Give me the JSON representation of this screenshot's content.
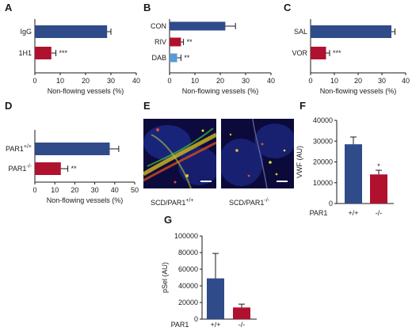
{
  "panels": {
    "A": "A",
    "B": "B",
    "C": "C",
    "D": "D",
    "E": "E",
    "F": "F",
    "G": "G"
  },
  "colors": {
    "blue": "#2f4b8a",
    "red": "#b0112e",
    "lightblue": "#5b9bd5"
  },
  "chart_data": [
    {
      "panel": "A",
      "type": "bar",
      "orientation": "horizontal",
      "categories": [
        "IgG",
        "1H1"
      ],
      "values": [
        28.5,
        6.5
      ],
      "errors": [
        1.5,
        1.8
      ],
      "significance": [
        "",
        "***"
      ],
      "colors": [
        "#2f4b8a",
        "#b0112e"
      ],
      "xlabel": "Non-flowing vessels (%)",
      "xlim": [
        0,
        40
      ],
      "xticks": [
        "0",
        "10",
        "20",
        "30",
        "40"
      ]
    },
    {
      "panel": "B",
      "type": "bar",
      "orientation": "horizontal",
      "categories": [
        "CON",
        "RIV",
        "DAB"
      ],
      "values": [
        22,
        4.5,
        3
      ],
      "errors": [
        4,
        1,
        1.5
      ],
      "significance": [
        "",
        "**",
        "**"
      ],
      "colors": [
        "#2f4b8a",
        "#b0112e",
        "#5b9bd5"
      ],
      "xlabel": "Non-flowing vessels (%)",
      "xlim": [
        0,
        40
      ],
      "xticks": [
        "0",
        "10",
        "20",
        "30",
        "40"
      ]
    },
    {
      "panel": "C",
      "type": "bar",
      "orientation": "horizontal",
      "categories": [
        "SAL",
        "VOR"
      ],
      "values": [
        34,
        6.5
      ],
      "errors": [
        1.5,
        1.5
      ],
      "significance": [
        "",
        "***"
      ],
      "colors": [
        "#2f4b8a",
        "#b0112e"
      ],
      "xlabel": "Non-flowing vessels (%)",
      "xlim": [
        0,
        40
      ],
      "xticks": [
        "0",
        "10",
        "20",
        "30",
        "40"
      ]
    },
    {
      "panel": "D",
      "type": "bar",
      "orientation": "horizontal",
      "categories": [
        "PAR1",
        "PAR1"
      ],
      "category_superscripts": [
        "+/+",
        "-/-"
      ],
      "values": [
        37.5,
        13
      ],
      "errors": [
        4.5,
        3.5
      ],
      "significance": [
        "",
        "**"
      ],
      "colors": [
        "#2f4b8a",
        "#b0112e"
      ],
      "xlabel": "Non-flowing vessels (%)",
      "xlim": [
        0,
        50
      ],
      "xticks": [
        "0",
        "10",
        "20",
        "30",
        "40",
        "50"
      ]
    },
    {
      "panel": "F",
      "type": "bar",
      "orientation": "vertical",
      "group_label": "PAR1",
      "categories": [
        "+/+",
        "-/-"
      ],
      "values": [
        28500,
        14000
      ],
      "errors": [
        3500,
        2000
      ],
      "significance": [
        "",
        "*"
      ],
      "colors": [
        "#2f4b8a",
        "#b0112e"
      ],
      "ylabel": "VWF (AU)",
      "ylim": [
        0,
        40000
      ],
      "yticks": [
        "0",
        "10000",
        "20000",
        "30000",
        "40000"
      ]
    },
    {
      "panel": "G",
      "type": "bar",
      "orientation": "vertical",
      "group_label": "PAR1",
      "categories": [
        "+/+",
        "-/-"
      ],
      "values": [
        49000,
        14000
      ],
      "errors": [
        30000,
        4000
      ],
      "significance": [
        "",
        ""
      ],
      "colors": [
        "#2f4b8a",
        "#b0112e"
      ],
      "ylabel": "pSel (AU)",
      "ylim": [
        0,
        100000
      ],
      "yticks": [
        "0",
        "20000",
        "40000",
        "60000",
        "80000",
        "100000"
      ]
    }
  ],
  "micrographs": {
    "left_caption": "SCD/PAR1",
    "left_superscript": "+/+",
    "right_caption": "SCD/PAR1",
    "right_superscript": "-/-"
  }
}
